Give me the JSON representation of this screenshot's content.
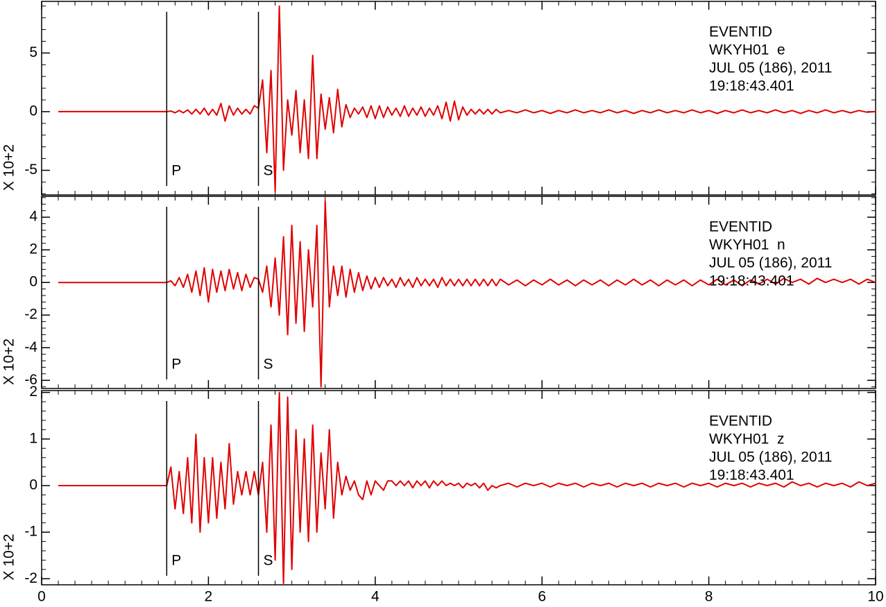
{
  "chart_data": [
    {
      "type": "line",
      "ylabel": "X 10+2",
      "color": "#e00000",
      "xlim": [
        0,
        10
      ],
      "xticks": [
        0,
        2,
        4,
        6,
        8,
        10
      ],
      "ylim": [
        -7.1,
        9.4
      ],
      "yticks": [
        -5,
        0,
        5
      ],
      "annotations": [
        "EVENTID",
        "WKYH01  e",
        "JUL 05 (186), 2011",
        "19:18:43.401"
      ],
      "markers": [
        {
          "label": "P",
          "x": 1.5
        },
        {
          "label": "S",
          "x": 2.6
        }
      ],
      "x": [
        0.2,
        1.5,
        1.55,
        1.6,
        1.65,
        1.7,
        1.75,
        1.8,
        1.85,
        1.9,
        1.95,
        2.0,
        2.05,
        2.1,
        2.15,
        2.2,
        2.25,
        2.3,
        2.35,
        2.4,
        2.45,
        2.5,
        2.55,
        2.6,
        2.65,
        2.7,
        2.75,
        2.8,
        2.85,
        2.9,
        2.95,
        3.0,
        3.05,
        3.1,
        3.15,
        3.2,
        3.25,
        3.3,
        3.35,
        3.4,
        3.45,
        3.5,
        3.55,
        3.6,
        3.65,
        3.7,
        3.75,
        3.8,
        3.85,
        3.9,
        3.95,
        4.0,
        4.05,
        4.1,
        4.15,
        4.2,
        4.25,
        4.3,
        4.35,
        4.4,
        4.45,
        4.5,
        4.55,
        4.6,
        4.65,
        4.7,
        4.75,
        4.8,
        4.85,
        4.9,
        4.95,
        5.0,
        5.05,
        5.1,
        5.15,
        5.2,
        5.25,
        5.3,
        5.35,
        5.4,
        5.45,
        5.5,
        5.6,
        5.7,
        5.8,
        5.9,
        6.0,
        6.1,
        6.2,
        6.3,
        6.4,
        6.5,
        6.6,
        6.7,
        6.8,
        6.9,
        7.0,
        7.1,
        7.2,
        7.3,
        7.4,
        7.5,
        7.6,
        7.7,
        7.8,
        7.9,
        8.0,
        8.1,
        8.2,
        8.3,
        8.4,
        8.5,
        8.6,
        8.7,
        8.8,
        8.9,
        9.0,
        9.1,
        9.2,
        9.3,
        9.4,
        9.5,
        9.6,
        9.7,
        9.8,
        9.9,
        10.0
      ],
      "values": [
        0,
        0,
        0.05,
        -0.1,
        0.1,
        -0.1,
        0.15,
        -0.2,
        0.2,
        -0.2,
        0.3,
        -0.3,
        0.2,
        -0.3,
        0.7,
        -0.8,
        0.5,
        -0.3,
        0.3,
        -0.2,
        0.2,
        -0.2,
        0.5,
        0.3,
        2.7,
        -3.5,
        3.5,
        -6.8,
        9,
        -5,
        1,
        -2,
        1.8,
        -3.5,
        1,
        -4,
        4.8,
        -4,
        1.5,
        -1.5,
        1.2,
        -1.8,
        1.9,
        -1.3,
        0.6,
        -0.5,
        0.3,
        -0.2,
        0.4,
        -0.5,
        0.5,
        -0.6,
        0.5,
        -0.5,
        0.4,
        -0.3,
        0.3,
        -0.4,
        0.5,
        -0.4,
        0.3,
        -0.3,
        0.4,
        -0.4,
        0.3,
        -0.3,
        0.5,
        -0.6,
        0.8,
        -0.8,
        0.9,
        -0.7,
        0.4,
        -0.3,
        0.2,
        -0.2,
        0.2,
        -0.2,
        0.2,
        -0.2,
        0.2,
        -0.1,
        0.1,
        -0.1,
        0.15,
        -0.1,
        0.1,
        -0.15,
        0.1,
        -0.1,
        0.15,
        -0.1,
        0.1,
        -0.1,
        0.15,
        -0.1,
        0.1,
        -0.15,
        0.1,
        -0.1,
        0.15,
        -0.1,
        0.1,
        -0.1,
        0.15,
        -0.1,
        0.1,
        -0.15,
        0.1,
        -0.1,
        0.15,
        -0.1,
        0.1,
        -0.1,
        0.15,
        -0.1,
        0.1,
        -0.15,
        0.1,
        -0.1,
        0.15,
        -0.1,
        0.1,
        -0.1,
        0.1,
        -0.05,
        0
      ]
    },
    {
      "type": "line",
      "ylabel": "X 10+2",
      "color": "#e00000",
      "xlim": [
        0,
        10
      ],
      "xticks": [
        0,
        2,
        4,
        6,
        8,
        10
      ],
      "ylim": [
        -6.5,
        5.28
      ],
      "yticks": [
        -6,
        -4,
        -2,
        0,
        2,
        4
      ],
      "annotations": [
        "EVENTID",
        "WKYH01  n",
        "JUL 05 (186), 2011",
        "19:18:43.401"
      ],
      "markers": [
        {
          "label": "P",
          "x": 1.5
        },
        {
          "label": "S",
          "x": 2.6
        }
      ],
      "x": [
        0.2,
        1.5,
        1.55,
        1.6,
        1.65,
        1.7,
        1.75,
        1.8,
        1.85,
        1.9,
        1.95,
        2.0,
        2.05,
        2.1,
        2.15,
        2.2,
        2.25,
        2.3,
        2.35,
        2.4,
        2.45,
        2.5,
        2.55,
        2.6,
        2.65,
        2.7,
        2.75,
        2.8,
        2.85,
        2.9,
        2.95,
        3.0,
        3.05,
        3.1,
        3.15,
        3.2,
        3.25,
        3.3,
        3.35,
        3.4,
        3.45,
        3.5,
        3.55,
        3.6,
        3.65,
        3.7,
        3.75,
        3.8,
        3.85,
        3.9,
        3.95,
        4.0,
        4.05,
        4.1,
        4.15,
        4.2,
        4.25,
        4.3,
        4.35,
        4.4,
        4.45,
        4.5,
        4.55,
        4.6,
        4.65,
        4.7,
        4.75,
        4.8,
        4.85,
        4.9,
        4.95,
        5.0,
        5.05,
        5.1,
        5.15,
        5.2,
        5.25,
        5.3,
        5.35,
        5.4,
        5.45,
        5.5,
        5.6,
        5.7,
        5.8,
        5.9,
        6.0,
        6.1,
        6.2,
        6.3,
        6.4,
        6.5,
        6.6,
        6.7,
        6.8,
        6.9,
        7.0,
        7.1,
        7.2,
        7.3,
        7.4,
        7.5,
        7.6,
        7.7,
        7.8,
        7.9,
        8.0,
        8.1,
        8.2,
        8.3,
        8.4,
        8.5,
        8.6,
        8.7,
        8.8,
        8.9,
        9.0,
        9.1,
        9.2,
        9.3,
        9.4,
        9.5,
        9.6,
        9.7,
        9.8,
        9.9,
        10.0
      ],
      "values": [
        0,
        0,
        0.1,
        -0.2,
        0.3,
        -0.3,
        0.5,
        -0.6,
        0.7,
        -0.8,
        0.9,
        -1.2,
        0.8,
        -0.6,
        0.7,
        -0.5,
        0.8,
        -0.4,
        0.6,
        -0.5,
        0.5,
        -0.3,
        0.3,
        0.2,
        -0.6,
        1,
        -1.5,
        1.5,
        -2,
        2.8,
        -3.2,
        3.5,
        -2.5,
        2.5,
        -3,
        2,
        -1.5,
        3.5,
        -6.4,
        5,
        -1.5,
        1,
        -0.8,
        1,
        -0.9,
        0.8,
        -0.6,
        0.6,
        -0.5,
        0.4,
        -0.4,
        0.3,
        -0.3,
        0.3,
        -0.2,
        0.2,
        -0.3,
        0.3,
        -0.2,
        0.2,
        -0.3,
        0.3,
        -0.2,
        0.2,
        -0.2,
        0.2,
        -0.3,
        0.3,
        -0.2,
        0.2,
        -0.2,
        0.2,
        -0.2,
        0.2,
        -0.2,
        0.2,
        -0.2,
        0.2,
        -0.2,
        0.2,
        -0.2,
        0.2,
        -0.15,
        0.15,
        -0.2,
        0.15,
        -0.15,
        0.2,
        -0.15,
        0.15,
        -0.2,
        0.15,
        -0.15,
        0.15,
        -0.2,
        0.15,
        -0.15,
        0.2,
        -0.15,
        0.15,
        -0.2,
        0.15,
        -0.15,
        0.15,
        -0.2,
        0.15,
        -0.15,
        0.2,
        -0.15,
        0.15,
        -0.2,
        0.15,
        -0.1,
        0.2,
        -0.1,
        0.25,
        0,
        0.2,
        -0.1,
        0.25,
        0,
        0.2,
        0,
        0.2,
        -0.1,
        0.2,
        0
      ]
    },
    {
      "type": "line",
      "ylabel": "X 10+2",
      "color": "#e00000",
      "xlim": [
        0,
        10
      ],
      "xticks": [
        0,
        2,
        4,
        6,
        8,
        10
      ],
      "ylim": [
        -2.13,
        2.04
      ],
      "yticks": [
        -2,
        -1,
        0,
        1,
        2
      ],
      "annotations": [
        "EVENTID",
        "WKYH01  z",
        "JUL 05 (186), 2011",
        "19:18:43.401"
      ],
      "markers": [
        {
          "label": "P",
          "x": 1.5
        },
        {
          "label": "S",
          "x": 2.6
        }
      ],
      "x": [
        0.2,
        1.5,
        1.55,
        1.6,
        1.65,
        1.7,
        1.75,
        1.8,
        1.85,
        1.9,
        1.95,
        2.0,
        2.05,
        2.1,
        2.15,
        2.2,
        2.25,
        2.3,
        2.35,
        2.4,
        2.45,
        2.5,
        2.55,
        2.6,
        2.65,
        2.7,
        2.75,
        2.8,
        2.85,
        2.9,
        2.95,
        3.0,
        3.05,
        3.1,
        3.15,
        3.2,
        3.25,
        3.3,
        3.35,
        3.4,
        3.45,
        3.5,
        3.55,
        3.6,
        3.65,
        3.7,
        3.75,
        3.8,
        3.85,
        3.9,
        3.95,
        4.0,
        4.05,
        4.1,
        4.15,
        4.2,
        4.25,
        4.3,
        4.35,
        4.4,
        4.45,
        4.5,
        4.55,
        4.6,
        4.65,
        4.7,
        4.75,
        4.8,
        4.85,
        4.9,
        4.95,
        5.0,
        5.05,
        5.1,
        5.15,
        5.2,
        5.25,
        5.3,
        5.35,
        5.4,
        5.45,
        5.5,
        5.6,
        5.7,
        5.8,
        5.9,
        6.0,
        6.1,
        6.2,
        6.3,
        6.4,
        6.5,
        6.6,
        6.7,
        6.8,
        6.9,
        7.0,
        7.1,
        7.2,
        7.3,
        7.4,
        7.5,
        7.6,
        7.7,
        7.8,
        7.9,
        8.0,
        8.1,
        8.2,
        8.3,
        8.4,
        8.5,
        8.6,
        8.7,
        8.8,
        8.9,
        9.0,
        9.1,
        9.2,
        9.3,
        9.4,
        9.5,
        9.6,
        9.7,
        9.8,
        9.9,
        10.0
      ],
      "values": [
        0,
        0,
        0.4,
        -0.5,
        0.3,
        -0.6,
        0.6,
        -0.8,
        1.1,
        -1,
        0.6,
        -0.8,
        0.6,
        -0.7,
        0.5,
        -0.5,
        0.9,
        -0.4,
        0.3,
        -0.2,
        0.3,
        -0.2,
        0.3,
        -0.2,
        0.5,
        -1,
        1.3,
        -1.6,
        2,
        -2.1,
        1.9,
        -1.8,
        1.2,
        -1,
        1,
        -1.2,
        1.3,
        -1,
        0.7,
        -0.5,
        1.2,
        -0.7,
        0.5,
        -0.2,
        0.2,
        -0.1,
        0.1,
        -0.2,
        -0.3,
        0.1,
        -0.2,
        0.1,
        0,
        -0.1,
        0.1,
        0.1,
        0,
        0.1,
        0,
        0.1,
        -0.05,
        0.1,
        0,
        0.1,
        -0.05,
        0.1,
        0,
        0.1,
        0,
        0.05,
        0,
        0.05,
        -0.05,
        0.05,
        0,
        0.05,
        -0.05,
        0.05,
        -0.1,
        0,
        -0.05,
        0,
        0.05,
        -0.03,
        0.05,
        0,
        0.05,
        -0.03,
        0.05,
        0,
        0.05,
        -0.03,
        0.05,
        0,
        0.05,
        -0.03,
        0.05,
        0,
        0.05,
        -0.03,
        0.05,
        0,
        0.05,
        -0.03,
        0.05,
        0,
        0.05,
        -0.03,
        0.05,
        0,
        0.05,
        -0.03,
        0.05,
        0,
        0.05,
        -0.03,
        0.08,
        0,
        0.05,
        -0.03,
        0.05,
        0,
        0.05,
        -0.03,
        0.08,
        0,
        0.05
      ]
    }
  ]
}
